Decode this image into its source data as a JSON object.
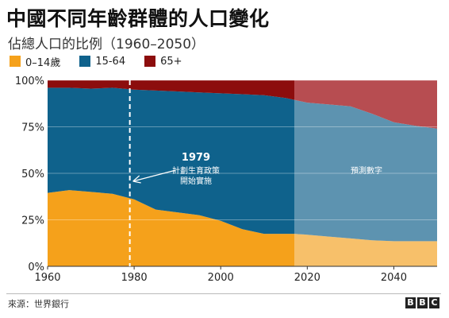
{
  "title": "中國不同年齡群體的人口變化",
  "subtitle": "佔總人口的比例（1960–2050）",
  "source": "來源：世界銀行",
  "logo_letters": [
    "B",
    "B",
    "C"
  ],
  "colors": {
    "age_0_14": "#f5a11b",
    "age_15_64": "#0f628c",
    "age_65_plus": "#8c0d0d",
    "projection_0_14": "#f7c06a",
    "projection_15_64": "#5d93b0",
    "projection_65_plus": "#b74d51"
  },
  "chart_data": {
    "type": "area",
    "stacked": true,
    "x": [
      1960,
      1965,
      1970,
      1975,
      1980,
      1985,
      1990,
      1995,
      2000,
      2005,
      2010,
      2015,
      2017,
      2020,
      2025,
      2030,
      2035,
      2040,
      2045,
      2050
    ],
    "series": [
      {
        "name": "0–14歲",
        "values": [
          39.5,
          41,
          40,
          39,
          36,
          30.5,
          29,
          27.5,
          24.5,
          20,
          17.5,
          17.5,
          17.5,
          17,
          16,
          15,
          14,
          13.5,
          13.5,
          13.5
        ]
      },
      {
        "name": "15-64",
        "values": [
          56.5,
          55,
          55.5,
          57,
          59,
          64,
          65,
          66,
          68.5,
          72.5,
          74.5,
          73,
          72,
          71,
          71,
          71,
          68,
          64,
          62,
          60.5
        ]
      },
      {
        "name": "65+",
        "values": [
          4,
          4,
          4.5,
          4,
          5,
          5.5,
          6,
          6.5,
          7,
          7.5,
          8,
          9.5,
          10.5,
          12,
          13,
          14,
          18,
          22.5,
          24.5,
          26
        ]
      }
    ],
    "projection_start": 2017,
    "xlim": [
      1960,
      2050
    ],
    "ylim": [
      0,
      100
    ],
    "x_ticks": [
      1960,
      1980,
      2000,
      2020,
      2040
    ],
    "y_ticks": [
      0,
      25,
      50,
      75,
      100
    ],
    "y_tick_labels": [
      "0%",
      "25%",
      "50%",
      "75%",
      "100%"
    ],
    "grid": true,
    "legend": "top-left",
    "annotations": {
      "policy_year": 1979,
      "policy_label": "1979",
      "policy_text": [
        "計劃生育政策",
        "開始實施"
      ],
      "projection_label": "預測數字"
    }
  }
}
